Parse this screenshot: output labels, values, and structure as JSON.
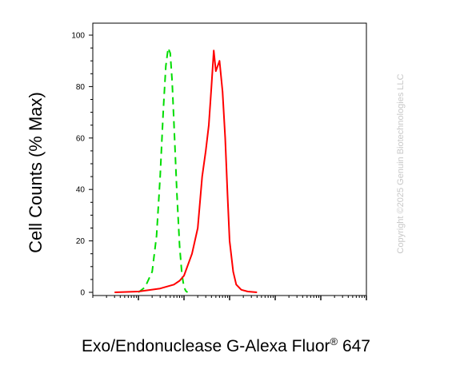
{
  "chart_data": {
    "type": "line",
    "x_scale": "log",
    "xlim": [
      1,
      1000000
    ],
    "ylim": [
      0,
      100
    ],
    "y_ticks": [
      0,
      20,
      40,
      60,
      80,
      100
    ],
    "y_tick_labels": [
      "0",
      "20",
      "40",
      "60",
      "80",
      "100"
    ],
    "ylabel": "Cell Counts (% Max)",
    "xlabel_main": "Exo/Endonuclease G-Alexa Fluor",
    "xlabel_sup": "®",
    "xlabel_tail": " 647",
    "grid": false,
    "legend": "none",
    "series": [
      {
        "color": "#00dd00",
        "style": "dashed",
        "x": [
          10,
          14,
          20,
          25,
          30,
          35,
          40,
          45,
          50,
          55,
          60,
          70,
          80,
          90,
          100,
          110,
          120
        ],
        "values": [
          0,
          2,
          8,
          22,
          45,
          70,
          88,
          95,
          93,
          82,
          66,
          38,
          18,
          7,
          2,
          0.5,
          0
        ]
      },
      {
        "color": "#ff0000",
        "style": "solid",
        "x": [
          3,
          10,
          30,
          60,
          80,
          100,
          150,
          200,
          250,
          300,
          350,
          400,
          450,
          500,
          600,
          700,
          800,
          900,
          1000,
          1200,
          1400,
          1800,
          2500,
          4000
        ],
        "values": [
          0,
          0.3,
          1.5,
          3,
          4.5,
          6.5,
          15,
          25,
          45,
          55,
          65,
          80,
          94,
          86,
          90,
          78,
          60,
          38,
          20,
          8,
          3,
          1,
          0.3,
          0
        ]
      }
    ]
  },
  "watermark": "Copyright ©2025 Genuin Biotechnologies LLC"
}
